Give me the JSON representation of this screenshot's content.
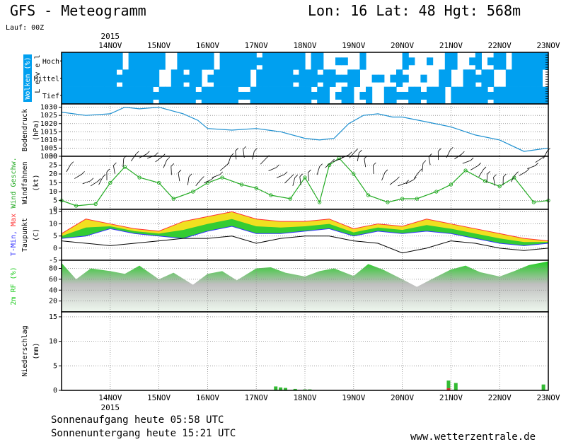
{
  "header": {
    "title": "GFS - Meteogramm",
    "location": "Lon: 16 Lat: 48 Hgt: 568m",
    "run": "Lauf: 00Z"
  },
  "time_axis": {
    "year": "2015",
    "labels": [
      "14NOV",
      "15NOV",
      "16NOV",
      "17NOV",
      "18NOV",
      "19NOV",
      "20NOV",
      "21NOV",
      "22NOV",
      "23NOV"
    ]
  },
  "footer": {
    "sunrise": "Sonnenaufgang heute 05:58 UTC",
    "sunset": "Sonnenuntergang heute 15:21 UTC",
    "site": "www.wetterzentrale.de"
  },
  "colors": {
    "cloud": "#00a0f0",
    "pressure": "#1e90d0",
    "wind": "#22aa22",
    "tmin": "#3333ff",
    "tmax": "#ff3333",
    "band_yellow": "#f0e020",
    "band_green": "#33cc33",
    "humidity": "#22cc22",
    "precip": "#33bb33",
    "precip_red": "#dd3333"
  },
  "chart_data": [
    {
      "type": "heatmap",
      "panel": "clouds",
      "ylabel": "Wolken (%)",
      "ylabel2": "L e v e l",
      "levels": [
        "Hoch",
        "Mittel",
        "Tief"
      ],
      "x": [
        "14NOV",
        "15NOV",
        "16NOV",
        "17NOV",
        "18NOV",
        "19NOV",
        "20NOV",
        "21NOV",
        "22NOV",
        "23NOV"
      ],
      "cover": {
        "Hoch": [
          90,
          70,
          60,
          65,
          80,
          40,
          20,
          30,
          40,
          70
        ],
        "Mittel": [
          85,
          75,
          50,
          70,
          75,
          60,
          40,
          35,
          50,
          65
        ],
        "Tief": [
          90,
          85,
          80,
          75,
          90,
          60,
          50,
          60,
          80,
          90
        ]
      }
    },
    {
      "type": "line",
      "panel": "pressure",
      "ylabel": "Bodendruck",
      "unit": "(hPa)",
      "ylim": [
        1000,
        1032
      ],
      "yticks": [
        1000,
        1005,
        1010,
        1015,
        1020,
        1025,
        1030
      ],
      "x": [
        13.0,
        13.5,
        14.0,
        14.3,
        14.6,
        15.0,
        15.5,
        15.8,
        16.0,
        16.5,
        17.0,
        17.5,
        18.0,
        18.3,
        18.6,
        18.9,
        19.2,
        19.5,
        19.8,
        20.0,
        20.5,
        21.0,
        21.5,
        22.0,
        22.5,
        23.0
      ],
      "values": [
        1027,
        1025,
        1026,
        1030,
        1029,
        1030,
        1026,
        1022,
        1017,
        1016,
        1017,
        1015,
        1011,
        1010,
        1011,
        1020,
        1025,
        1026,
        1024,
        1024,
        1021,
        1018,
        1013,
        1010,
        1003,
        1005
      ]
    },
    {
      "type": "line",
      "panel": "wind",
      "ylabel": "Wind Geschw.",
      "ylabel2": "Windfahnen",
      "unit": "(kt)",
      "ylim": [
        0,
        30
      ],
      "yticks": [
        0,
        5,
        10,
        15,
        20,
        25,
        30
      ],
      "x": [
        13.0,
        13.3,
        13.7,
        14.0,
        14.3,
        14.6,
        15.0,
        15.3,
        15.7,
        16.0,
        16.3,
        16.7,
        17.0,
        17.3,
        17.7,
        18.0,
        18.3,
        18.5,
        18.7,
        19.0,
        19.3,
        19.7,
        20.0,
        20.3,
        20.7,
        21.0,
        21.3,
        21.7,
        22.0,
        22.3,
        22.7,
        23.0
      ],
      "values": [
        5,
        2,
        3,
        15,
        24,
        18,
        15,
        6,
        10,
        15,
        18,
        14,
        12,
        8,
        6,
        18,
        4,
        25,
        29,
        20,
        8,
        4,
        6,
        6,
        10,
        14,
        22,
        16,
        13,
        18,
        4,
        5
      ]
    },
    {
      "type": "area",
      "panel": "temperature",
      "ylabel": "T-Min, Max",
      "ylabel2": "Taupunkt",
      "unit": "(C)",
      "ylim": [
        -5,
        16
      ],
      "yticks": [
        -5,
        0,
        5,
        10,
        15
      ],
      "x": [
        13.0,
        13.5,
        14.0,
        14.5,
        15.0,
        15.5,
        16.0,
        16.5,
        17.0,
        17.5,
        18.0,
        18.5,
        19.0,
        19.5,
        20.0,
        20.5,
        21.0,
        21.5,
        22.0,
        22.5,
        23.0
      ],
      "series": [
        {
          "name": "T-Min",
          "values": [
            4,
            5,
            8,
            6,
            5,
            4,
            7,
            9,
            6,
            6,
            7,
            8,
            5,
            7,
            6,
            7,
            6,
            4,
            2,
            1,
            2
          ]
        },
        {
          "name": "Max",
          "values": [
            6,
            12,
            10,
            8,
            7,
            11,
            13,
            15,
            12,
            11,
            11,
            12,
            8,
            10,
            9,
            12,
            10,
            8,
            6,
            4,
            3
          ]
        },
        {
          "name": "Taupunkt",
          "values": [
            3,
            2,
            1,
            2,
            3,
            4,
            4,
            5,
            2,
            4,
            5,
            5,
            3,
            2,
            -2,
            0,
            3,
            2,
            0,
            -1,
            0
          ]
        }
      ]
    },
    {
      "type": "area",
      "panel": "humidity",
      "ylabel": "2m RF (%)",
      "ylim": [
        0,
        95
      ],
      "yticks": [
        20,
        40,
        60,
        80
      ],
      "x": [
        13.0,
        13.3,
        13.6,
        14.0,
        14.3,
        14.6,
        15.0,
        15.3,
        15.7,
        16.0,
        16.3,
        16.6,
        17.0,
        17.3,
        17.6,
        18.0,
        18.3,
        18.6,
        19.0,
        19.3,
        19.6,
        20.0,
        20.3,
        20.6,
        21.0,
        21.3,
        21.6,
        22.0,
        22.3,
        22.6,
        23.0
      ],
      "values": [
        90,
        60,
        80,
        75,
        70,
        85,
        60,
        72,
        50,
        70,
        75,
        58,
        80,
        82,
        72,
        65,
        75,
        80,
        66,
        88,
        78,
        60,
        46,
        60,
        78,
        85,
        73,
        65,
        75,
        86,
        93
      ]
    },
    {
      "type": "bar",
      "panel": "precipitation",
      "ylabel": "Niederschlag",
      "unit": "(mm)",
      "ylim": [
        0,
        16
      ],
      "yticks": [
        0,
        5,
        10,
        15
      ],
      "x": [
        17.4,
        17.5,
        17.6,
        17.8,
        18.0,
        18.1,
        20.95,
        21.1,
        22.9
      ],
      "values": [
        0.8,
        0.6,
        0.5,
        0.3,
        0.2,
        0.2,
        2.0,
        1.5,
        1.2
      ]
    }
  ]
}
